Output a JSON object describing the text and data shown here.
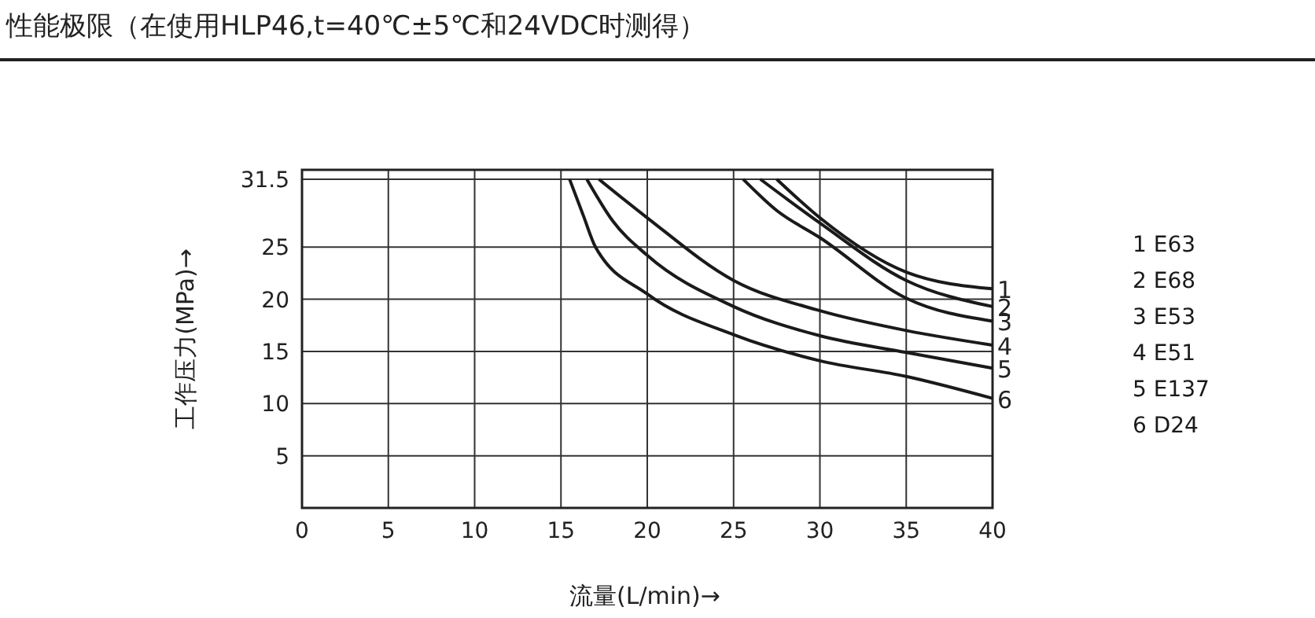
{
  "chart_data": {
    "type": "line",
    "title": "性能极限（在使用HLP46,t=40℃±5℃和24VDC时测得）",
    "xlabel": "流量(L/min)→",
    "ylabel": "工作压力(MPa)→",
    "xlim": [
      0,
      40
    ],
    "xticks": [
      0,
      5,
      10,
      15,
      20,
      25,
      30,
      35,
      40
    ],
    "ylim": [
      0,
      32.4
    ],
    "yticks": [
      5,
      10,
      15,
      20,
      25,
      31.5
    ],
    "grid": true,
    "legend": "right",
    "marker": "none",
    "line_style": "solid",
    "series": [
      {
        "name": "1 E63",
        "color": "#1a1a1a",
        "x": [
          27.5,
          30,
          35,
          40
        ],
        "values": [
          31.5,
          27.8,
          22.6,
          21.0
        ]
      },
      {
        "name": "2 E68",
        "color": "#1a1a1a",
        "x": [
          26.55,
          30,
          35,
          40
        ],
        "values": [
          31.5,
          27.3,
          21.8,
          19.3
        ]
      },
      {
        "name": "3 E53",
        "color": "#1a1a1a",
        "x": [
          25.55,
          27.5,
          30,
          35,
          40
        ],
        "values": [
          31.5,
          28.5,
          25.9,
          20.1,
          17.9
        ]
      },
      {
        "name": "4 E51",
        "color": "#1a1a1a",
        "x": [
          17.2,
          20,
          25,
          30,
          35,
          40
        ],
        "values": [
          31.5,
          27.8,
          21.8,
          18.9,
          17.0,
          15.6
        ]
      },
      {
        "name": "5 E137",
        "color": "#1a1a1a",
        "x": [
          16.5,
          18,
          20,
          25,
          30,
          35,
          40
        ],
        "values": [
          31.5,
          27.5,
          24.2,
          19.3,
          16.5,
          14.9,
          13.4
        ]
      },
      {
        "name": "6 D24",
        "color": "#1a1a1a",
        "x": [
          15.5,
          16.3,
          17,
          20,
          25,
          30,
          35,
          40
        ],
        "values": [
          31.5,
          28,
          25,
          20.5,
          16.6,
          14.1,
          12.6,
          10.5
        ]
      }
    ],
    "annotations": [
      "1",
      "2",
      "3",
      "4",
      "5",
      "6"
    ]
  }
}
